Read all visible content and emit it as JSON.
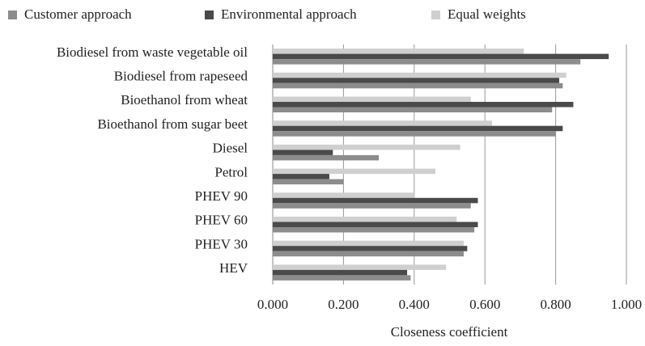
{
  "chart_data": {
    "type": "barh",
    "x_label": "Closeness coefficient",
    "categories": [
      "Biodiesel from waste vegetable oil",
      "Biodiesel from rapeseed",
      "Bioethanol from wheat",
      "Bioethanol from sugar beet",
      "Diesel",
      "Petrol",
      "PHEV 90",
      "PHEV 60",
      "PHEV 30",
      "HEV"
    ],
    "series": [
      {
        "name": "Customer approach",
        "color": "#8c8c8c",
        "values": [
          0.87,
          0.82,
          0.79,
          0.8,
          0.3,
          0.2,
          0.56,
          0.57,
          0.54,
          0.39
        ]
      },
      {
        "name": "Environmental approach",
        "color": "#4a4a4a",
        "values": [
          0.95,
          0.81,
          0.85,
          0.82,
          0.17,
          0.16,
          0.58,
          0.58,
          0.55,
          0.38
        ]
      },
      {
        "name": "Equal weights",
        "color": "#cfcfcf",
        "values": [
          0.71,
          0.83,
          0.56,
          0.62,
          0.53,
          0.46,
          0.4,
          0.52,
          0.54,
          0.49
        ]
      }
    ],
    "xlim": [
      0,
      1
    ],
    "xticks": [
      {
        "value": 0,
        "label": "0.000"
      },
      {
        "value": 0.2,
        "label": "0.200"
      },
      {
        "value": 0.4,
        "label": "0.400"
      },
      {
        "value": 0.6,
        "label": "0.600"
      },
      {
        "value": 0.8,
        "label": "0.800"
      },
      {
        "value": 1,
        "label": "1.000"
      }
    ],
    "grid": true,
    "legend": "top"
  }
}
